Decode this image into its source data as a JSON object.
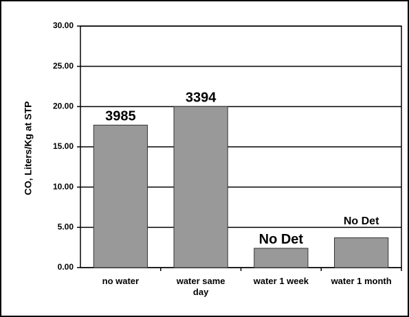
{
  "chart_data": {
    "type": "bar",
    "y_axis_label": "CO, Liters/Kg at STP",
    "categories": [
      "no water",
      "water same day",
      "water 1 week",
      "water 1 month"
    ],
    "values": [
      17.7,
      20.0,
      2.4,
      3.7
    ],
    "annotations": [
      "3985",
      "3394",
      "No Det",
      "No Det"
    ],
    "color": "#999999",
    "ylim": [
      0,
      30
    ],
    "yticks": [
      {
        "value": 0,
        "label": "0.00"
      },
      {
        "value": 5,
        "label": "5.00"
      },
      {
        "value": 10,
        "label": "10.00"
      },
      {
        "value": 15,
        "label": "15.00"
      },
      {
        "value": 20,
        "label": "20.00"
      },
      {
        "value": 25,
        "label": "25.00"
      },
      {
        "value": 30,
        "label": "30.00"
      }
    ],
    "grid": true
  }
}
